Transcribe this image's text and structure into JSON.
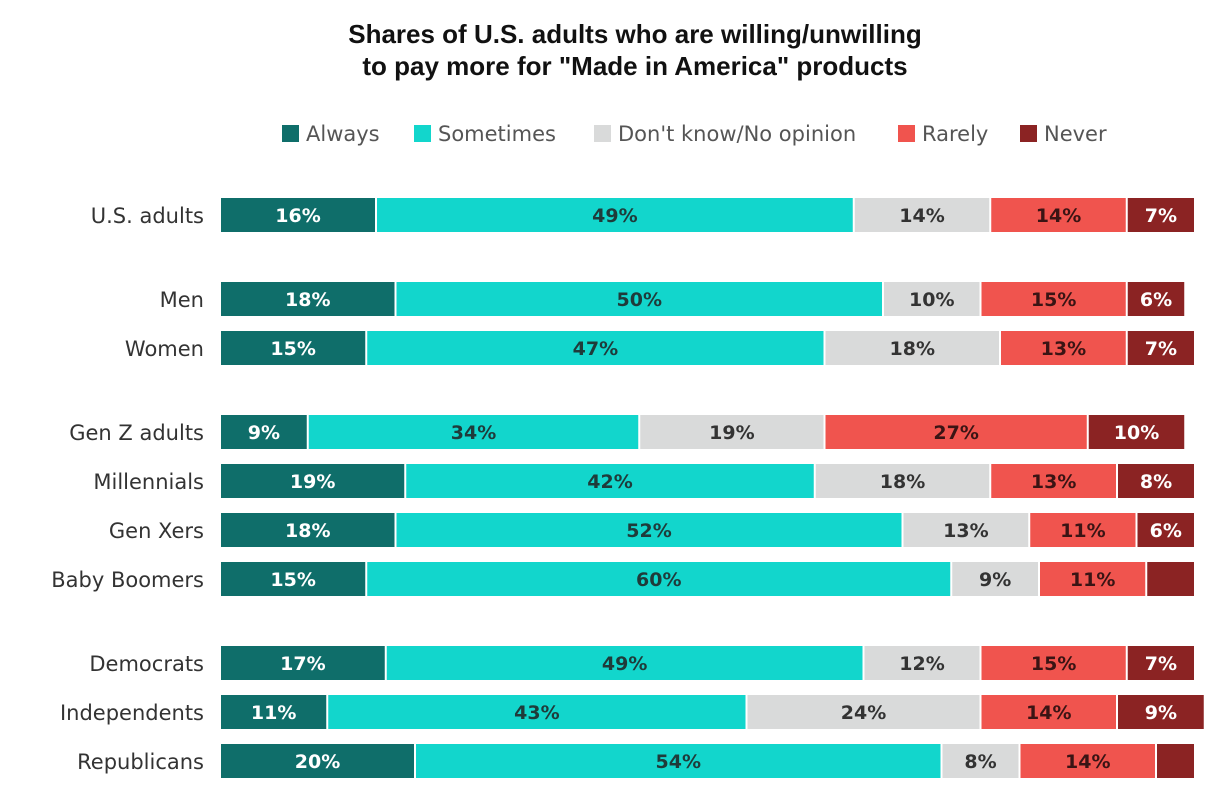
{
  "chart_data": {
    "type": "bar",
    "orientation": "horizontal",
    "stacked": true,
    "normalized": true,
    "title": "Shares of U.S. adults who are willing/unwilling\nto pay more for \"Made in America\" products",
    "legend_placement": "top",
    "grid": false,
    "xlim": [
      0,
      100
    ],
    "categories": [
      "U.S. adults",
      "Men",
      "Women",
      "Gen Z adults",
      "Millennials",
      "Gen Xers",
      "Baby Boomers",
      "Democrats",
      "Independents",
      "Republicans"
    ],
    "groups": [
      [
        0
      ],
      [
        1,
        2
      ],
      [
        3,
        4,
        5,
        6
      ],
      [
        7,
        8,
        9
      ]
    ],
    "series": [
      {
        "name": "Always",
        "color": "#0f6e6a",
        "label_color": "#ffffff",
        "values": [
          16,
          18,
          15,
          9,
          19,
          18,
          15,
          17,
          11,
          20
        ]
      },
      {
        "name": "Sometimes",
        "color": "#12d6cc",
        "label_color": "#1f3b3a",
        "values": [
          49,
          50,
          47,
          34,
          42,
          52,
          60,
          49,
          43,
          54
        ]
      },
      {
        "name": "Don't know/No opinion",
        "color": "#d9dada",
        "label_color": "#333333",
        "values": [
          14,
          10,
          18,
          19,
          18,
          13,
          9,
          12,
          24,
          8
        ]
      },
      {
        "name": "Rarely",
        "color": "#f0544e",
        "label_color": "#3a1414",
        "values": [
          14,
          15,
          13,
          27,
          13,
          11,
          11,
          15,
          14,
          14
        ]
      },
      {
        "name": "Never",
        "color": "#8b2323",
        "label_color": "#ffffff",
        "values": [
          7,
          6,
          7,
          10,
          8,
          6,
          5,
          7,
          9,
          4
        ]
      }
    ],
    "value_labels": [
      [
        "16%",
        "49%",
        "14%",
        "14%",
        "7%"
      ],
      [
        "18%",
        "50%",
        "10%",
        "15%",
        "6%"
      ],
      [
        "15%",
        "47%",
        "18%",
        "13%",
        "7%"
      ],
      [
        "9%",
        "34%",
        "19%",
        "27%",
        "10%"
      ],
      [
        "19%",
        "42%",
        "18%",
        "13%",
        "8%"
      ],
      [
        "18%",
        "52%",
        "13%",
        "11%",
        "6%"
      ],
      [
        "15%",
        "60%",
        "9%",
        "11%",
        ""
      ],
      [
        "17%",
        "49%",
        "12%",
        "15%",
        "7%"
      ],
      [
        "11%",
        "43%",
        "24%",
        "14%",
        "9%"
      ],
      [
        "20%",
        "54%",
        "8%",
        "14%",
        ""
      ]
    ]
  }
}
